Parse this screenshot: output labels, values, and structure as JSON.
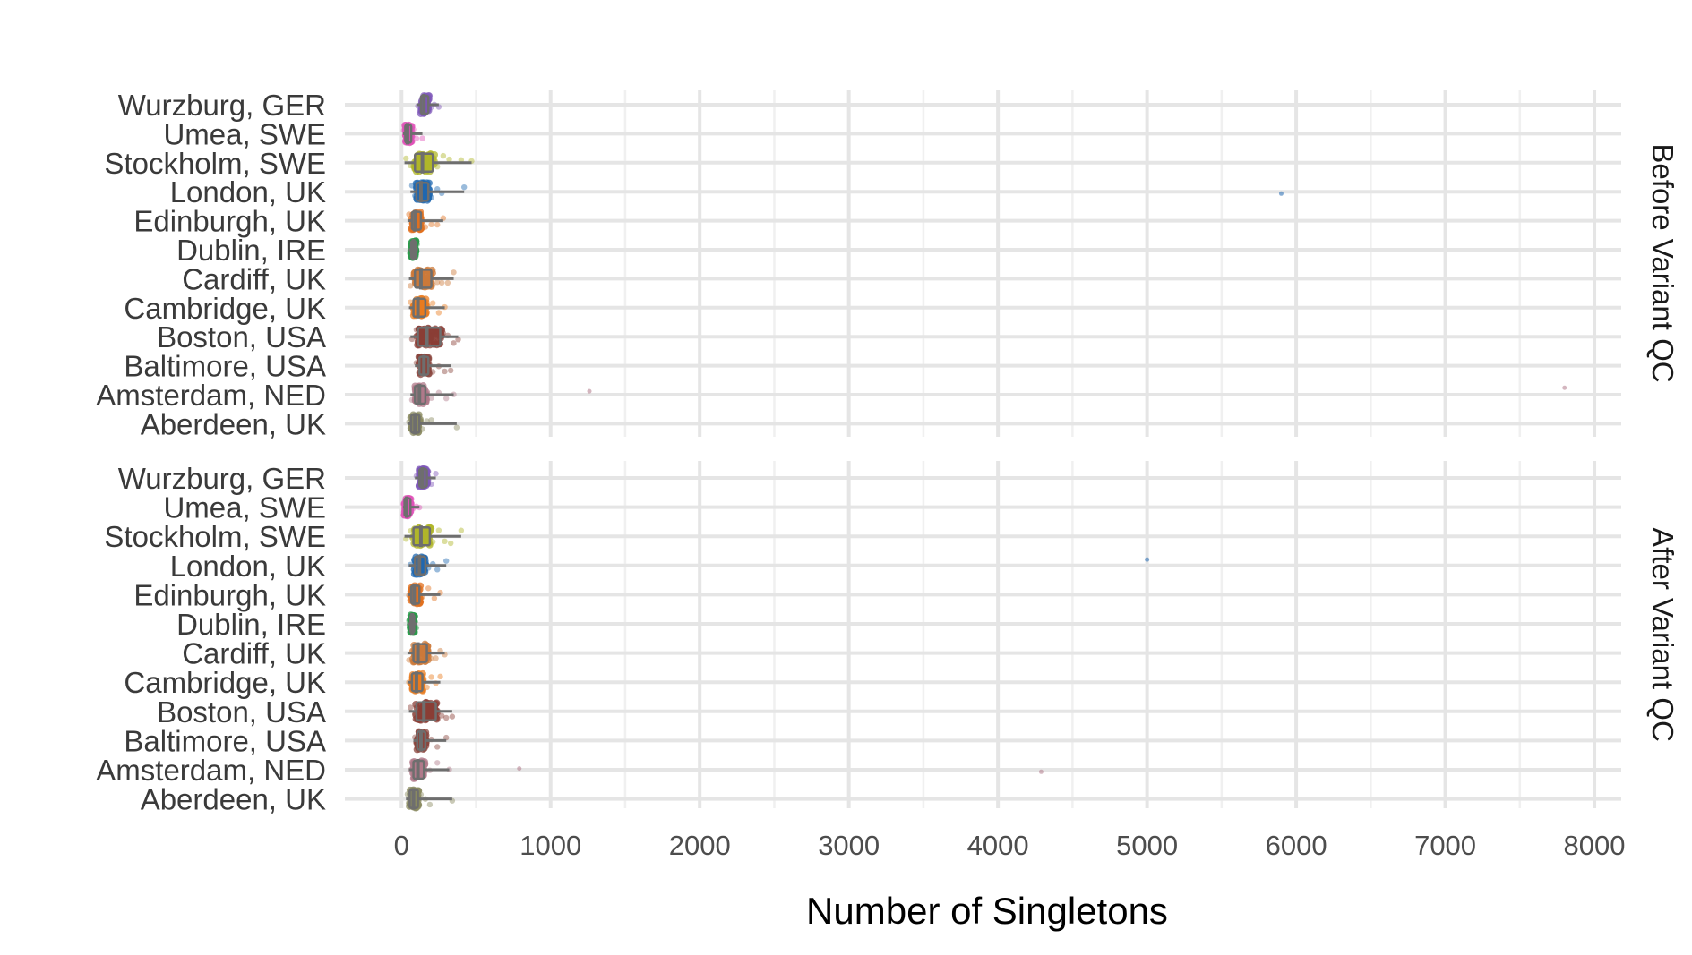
{
  "chart_data": {
    "type": "scatter",
    "subtype": "jittered strip plot with boxplots, faceted",
    "xlabel": "Number of Singletons",
    "ylabel": "",
    "xlim": [
      -380,
      8180
    ],
    "x_ticks": [
      0,
      1000,
      2000,
      3000,
      4000,
      5000,
      6000,
      7000,
      8000
    ],
    "x_tick_labels": [
      "0",
      "1000",
      "2000",
      "3000",
      "4000",
      "5000",
      "6000",
      "7000",
      "8000"
    ],
    "grid": true,
    "legend": "none",
    "facet_strip_position": "right",
    "categories": [
      "Wurzburg, GER",
      "Umea, SWE",
      "Stockholm, SWE",
      "London, UK",
      "Edinburgh, UK",
      "Dublin, IRE",
      "Cardiff, UK",
      "Cambridge, UK",
      "Boston, USA",
      "Baltimore, USA",
      "Amsterdam, NED",
      "Aberdeen, UK"
    ],
    "colors": {
      "Wurzburg, GER": "#7e57b8",
      "Umea, SWE": "#e052b8",
      "Stockholm, SWE": "#b0b52a",
      "London, UK": "#2068b0",
      "Edinburgh, UK": "#e0701f",
      "Dublin, IRE": "#2a9a4a",
      "Cardiff, UK": "#cc7a3a",
      "Cambridge, UK": "#e87c20",
      "Boston, USA": "#8a3e36",
      "Baltimore, USA": "#8a463e",
      "Amsterdam, NED": "#b07a8a",
      "Aberdeen, UK": "#8a8a60"
    },
    "box_color": "#6e6e6e",
    "panels": [
      {
        "strip_label": "Before Variant QC",
        "series": [
          {
            "category": "Wurzburg, GER",
            "min": 100,
            "q1": 130,
            "median": 150,
            "q3": 180,
            "max": 250,
            "points": [
              110,
              120,
              130,
              140,
              150,
              160,
              170,
              180,
              200,
              220,
              250
            ]
          },
          {
            "category": "Umea, SWE",
            "min": 10,
            "q1": 25,
            "median": 40,
            "q3": 65,
            "max": 140,
            "points": [
              15,
              25,
              35,
              45,
              55,
              65,
              80,
              100,
              140
            ]
          },
          {
            "category": "Stockholm, SWE",
            "min": 20,
            "q1": 90,
            "median": 140,
            "q3": 210,
            "max": 470,
            "points": [
              30,
              60,
              90,
              120,
              150,
              180,
              210,
              240,
              280,
              320,
              400,
              470
            ]
          },
          {
            "category": "London, UK",
            "min": 60,
            "q1": 100,
            "median": 130,
            "q3": 180,
            "max": 420,
            "points": [
              70,
              90,
              110,
              130,
              150,
              170,
              200,
              240,
              270,
              420,
              5900
            ]
          },
          {
            "category": "Edinburgh, UK",
            "min": 40,
            "q1": 70,
            "median": 90,
            "q3": 130,
            "max": 280,
            "points": [
              50,
              70,
              90,
              110,
              130,
              160,
              200,
              240,
              280
            ]
          },
          {
            "category": "Dublin, IRE",
            "min": 50,
            "q1": 65,
            "median": 80,
            "q3": 95,
            "max": 110,
            "points": [
              55,
              65,
              75,
              85,
              95,
              105
            ]
          },
          {
            "category": "Cardiff, UK",
            "min": 50,
            "q1": 90,
            "median": 130,
            "q3": 200,
            "max": 350,
            "points": [
              60,
              90,
              120,
              150,
              180,
              210,
              240,
              270,
              310,
              350
            ]
          },
          {
            "category": "Cambridge, UK",
            "min": 50,
            "q1": 80,
            "median": 110,
            "q3": 160,
            "max": 290,
            "points": [
              60,
              80,
              100,
              120,
              150,
              180,
              210,
              250,
              290
            ]
          },
          {
            "category": "Boston, USA",
            "min": 60,
            "q1": 110,
            "median": 170,
            "q3": 260,
            "max": 380,
            "points": [
              70,
              100,
              130,
              160,
              190,
              220,
              250,
              280,
              310,
              350,
              380
            ]
          },
          {
            "category": "Baltimore, USA",
            "min": 90,
            "q1": 120,
            "median": 150,
            "q3": 180,
            "max": 330,
            "points": [
              100,
              120,
              140,
              160,
              180,
              210,
              250,
              290,
              330
            ]
          },
          {
            "category": "Amsterdam, NED",
            "min": 60,
            "q1": 90,
            "median": 120,
            "q3": 160,
            "max": 350,
            "points": [
              70,
              100,
              130,
              160,
              200,
              250,
              300,
              350,
              1260,
              7800
            ]
          },
          {
            "category": "Aberdeen, UK",
            "min": 40,
            "q1": 65,
            "median": 90,
            "q3": 120,
            "max": 370,
            "points": [
              50,
              70,
              90,
              110,
              140,
              170,
              200,
              370
            ]
          }
        ]
      },
      {
        "strip_label": "After Variant QC",
        "series": [
          {
            "category": "Wurzburg, GER",
            "min": 90,
            "q1": 120,
            "median": 140,
            "q3": 170,
            "max": 230,
            "points": [
              100,
              115,
              130,
              145,
              160,
              175,
              200,
              230
            ]
          },
          {
            "category": "Umea, SWE",
            "min": 10,
            "q1": 20,
            "median": 35,
            "q3": 60,
            "max": 120,
            "points": [
              15,
              25,
              35,
              45,
              60,
              80,
              100,
              120
            ]
          },
          {
            "category": "Stockholm, SWE",
            "min": 20,
            "q1": 80,
            "median": 130,
            "q3": 190,
            "max": 400,
            "points": [
              30,
              60,
              90,
              120,
              150,
              180,
              210,
              250,
              290,
              330,
              400
            ]
          },
          {
            "category": "London, UK",
            "min": 50,
            "q1": 90,
            "median": 120,
            "q3": 160,
            "max": 300,
            "points": [
              60,
              80,
              100,
              120,
              150,
              180,
              210,
              240,
              300,
              5000
            ]
          },
          {
            "category": "Edinburgh, UK",
            "min": 40,
            "q1": 65,
            "median": 85,
            "q3": 120,
            "max": 260,
            "points": [
              50,
              70,
              90,
              110,
              140,
              180,
              220,
              260
            ]
          },
          {
            "category": "Dublin, IRE",
            "min": 45,
            "q1": 60,
            "median": 72,
            "q3": 85,
            "max": 100,
            "points": [
              50,
              60,
              70,
              80,
              90,
              100
            ]
          },
          {
            "category": "Cardiff, UK",
            "min": 40,
            "q1": 80,
            "median": 110,
            "q3": 170,
            "max": 290,
            "points": [
              50,
              80,
              110,
              140,
              170,
              200,
              230,
              260,
              290
            ]
          },
          {
            "category": "Cambridge, UK",
            "min": 40,
            "q1": 70,
            "median": 100,
            "q3": 140,
            "max": 260,
            "points": [
              50,
              70,
              90,
              110,
              140,
              170,
              200,
              230,
              260
            ]
          },
          {
            "category": "Boston, USA",
            "min": 50,
            "q1": 100,
            "median": 150,
            "q3": 230,
            "max": 340,
            "points": [
              60,
              90,
              120,
              150,
              180,
              210,
              240,
              270,
              300,
              340
            ]
          },
          {
            "category": "Baltimore, USA",
            "min": 80,
            "q1": 105,
            "median": 130,
            "q3": 160,
            "max": 300,
            "points": [
              90,
              110,
              130,
              150,
              170,
              200,
              240,
              300
            ]
          },
          {
            "category": "Amsterdam, NED",
            "min": 50,
            "q1": 80,
            "median": 110,
            "q3": 150,
            "max": 320,
            "points": [
              60,
              90,
              120,
              150,
              190,
              240,
              320,
              790,
              4290
            ]
          },
          {
            "category": "Aberdeen, UK",
            "min": 30,
            "q1": 55,
            "median": 80,
            "q3": 110,
            "max": 340,
            "points": [
              40,
              60,
              80,
              100,
              130,
              160,
              190,
              340
            ]
          }
        ]
      }
    ]
  }
}
